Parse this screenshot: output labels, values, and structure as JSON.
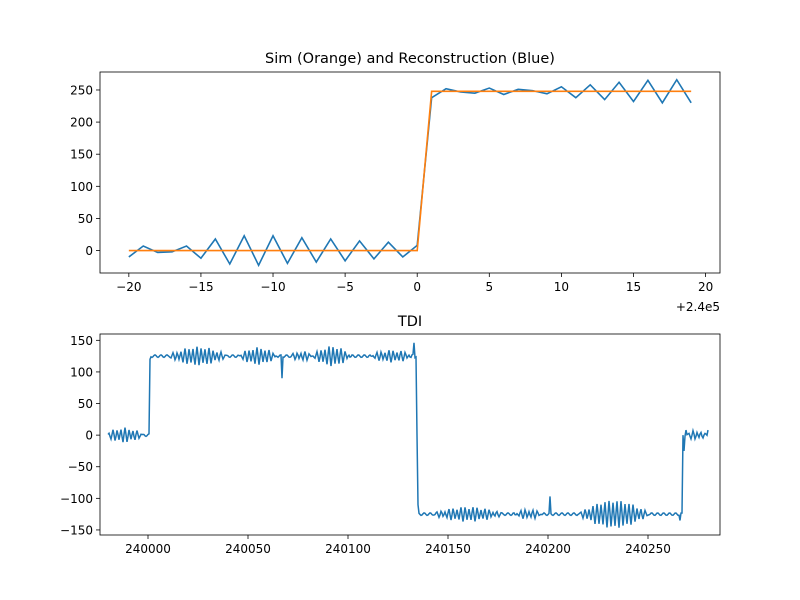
{
  "chart_data": [
    {
      "type": "line",
      "title": "Sim (Orange) and Reconstruction (Blue)",
      "xlabel": "",
      "ylabel": "",
      "x_offset_label": "+2.4e5",
      "xlim": [
        -22,
        21
      ],
      "ylim": [
        -35,
        278
      ],
      "x_ticks": [
        -20,
        -15,
        -10,
        -5,
        0,
        5,
        10,
        15,
        20
      ],
      "x_tick_labels": [
        "−20",
        "−15",
        "−10",
        "−5",
        "0",
        "5",
        "10",
        "15",
        "20"
      ],
      "y_ticks": [
        0,
        50,
        100,
        150,
        200,
        250
      ],
      "y_tick_labels": [
        "0",
        "50",
        "100",
        "150",
        "200",
        "250"
      ],
      "grid": false,
      "series": [
        {
          "color": "#1f77b4",
          "x": [
            -20,
            -19,
            -18,
            -17,
            -16,
            -15,
            -14,
            -13,
            -12,
            -11,
            -10,
            -9,
            -8,
            -7,
            -6,
            -5,
            -4,
            -3,
            -2,
            -1,
            0,
            1,
            2,
            3,
            4,
            5,
            6,
            7,
            8,
            9,
            10,
            11,
            12,
            13,
            14,
            15,
            16,
            17,
            18,
            19
          ],
          "y": [
            -10,
            7,
            -3,
            -2,
            7,
            -12,
            18,
            -21,
            23,
            -23,
            23,
            -20,
            20,
            -18,
            18,
            -16,
            15,
            -13,
            13,
            -10,
            8,
            238,
            252,
            247,
            245,
            253,
            243,
            251,
            249,
            244,
            255,
            238,
            258,
            235,
            262,
            232,
            265,
            230,
            266,
            230
          ]
        },
        {
          "color": "#ff7f0e",
          "x": [
            -20,
            0,
            1,
            19
          ],
          "y": [
            0,
            0,
            248,
            248
          ]
        }
      ]
    },
    {
      "type": "line",
      "title": "TDI",
      "xlabel": "",
      "ylabel": "",
      "xlim": [
        239976,
        240286
      ],
      "ylim": [
        -158,
        160
      ],
      "x_ticks": [
        240000,
        240050,
        240100,
        240150,
        240200,
        240250
      ],
      "x_tick_labels": [
        "240000",
        "240050",
        "240100",
        "240150",
        "240200",
        "240250"
      ],
      "y_ticks": [
        -150,
        -100,
        -50,
        0,
        50,
        100,
        150
      ],
      "y_tick_labels": [
        "−150",
        "−100",
        "−50",
        "0",
        "50",
        "100",
        "150"
      ],
      "grid": false,
      "series": [
        {
          "color": "#1f77b4",
          "description_points": {
            "segments": [
              {
                "x0": 239980,
                "x1": 240000,
                "level": 0
              },
              {
                "x0": 240001,
                "x1": 240134,
                "level": 125
              },
              {
                "x0": 240135,
                "x1": 240267,
                "level": -125
              },
              {
                "x0": 240268,
                "x1": 240280,
                "level": 0
              }
            ],
            "bursts": [
              {
                "center": 239988,
                "halfwidth": 10,
                "amp": 10
              },
              {
                "center": 240025,
                "halfwidth": 15,
                "amp": 13
              },
              {
                "center": 240055,
                "halfwidth": 10,
                "amp": 12
              },
              {
                "center": 240077,
                "halfwidth": 6,
                "amp": 6
              },
              {
                "center": 240092,
                "halfwidth": 10,
                "amp": 14
              },
              {
                "center": 240122,
                "halfwidth": 12,
                "amp": 8
              },
              {
                "center": 240160,
                "halfwidth": 18,
                "amp": 10
              },
              {
                "center": 240190,
                "halfwidth": 8,
                "amp": 6
              },
              {
                "center": 240233,
                "halfwidth": 18,
                "amp": 20
              },
              {
                "center": 240274,
                "halfwidth": 5,
                "amp": 6
              }
            ],
            "spikes": [
              {
                "x": 240001,
                "y": 120
              },
              {
                "x": 240067,
                "y": 90
              },
              {
                "x": 240133,
                "y": 146
              },
              {
                "x": 240135,
                "y": -110
              },
              {
                "x": 240201,
                "y": -97
              },
              {
                "x": 240266,
                "y": -135
              },
              {
                "x": 240268,
                "y": -25
              },
              {
                "x": 240269,
                "y": 8
              },
              {
                "x": 240280,
                "y": 8
              }
            ]
          }
        }
      ]
    }
  ]
}
